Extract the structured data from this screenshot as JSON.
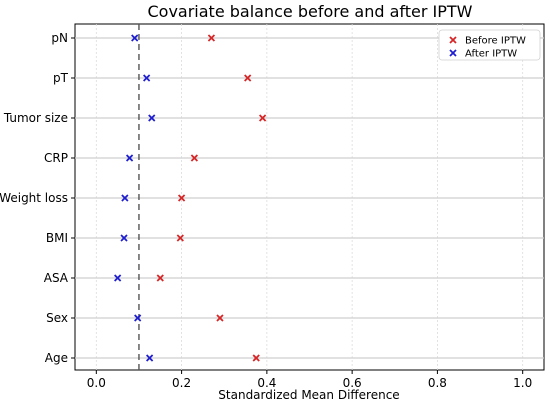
{
  "chart_data": {
    "type": "scatter",
    "title": "Covariate balance before and after IPTW",
    "xlabel": "Standardized Mean Difference",
    "ylabel": "",
    "xlim": [
      -0.05,
      1.05
    ],
    "xticks": [
      0.0,
      0.2,
      0.4,
      0.6,
      0.8,
      1.0
    ],
    "xtick_labels": [
      "0.0",
      "0.2",
      "0.4",
      "0.6",
      "0.8",
      "1.0"
    ],
    "categories": [
      "pN",
      "pT",
      "Tumor size",
      "CRP",
      "Weight loss",
      "BMI",
      "ASA",
      "Sex",
      "Age"
    ],
    "series": [
      {
        "name": "Before IPTW",
        "color": "#d62728",
        "marker": "x",
        "values": [
          0.27,
          0.355,
          0.39,
          0.23,
          0.2,
          0.197,
          0.15,
          0.29,
          0.375
        ]
      },
      {
        "name": "After IPTW",
        "color": "#1f1fcf",
        "marker": "x",
        "values": [
          0.09,
          0.118,
          0.13,
          0.078,
          0.067,
          0.065,
          0.05,
          0.097,
          0.125
        ]
      }
    ],
    "reference_line": {
      "x": 0.1,
      "style": "dashed",
      "color": "#555555"
    },
    "grid": true,
    "legend_position": "top-right"
  }
}
